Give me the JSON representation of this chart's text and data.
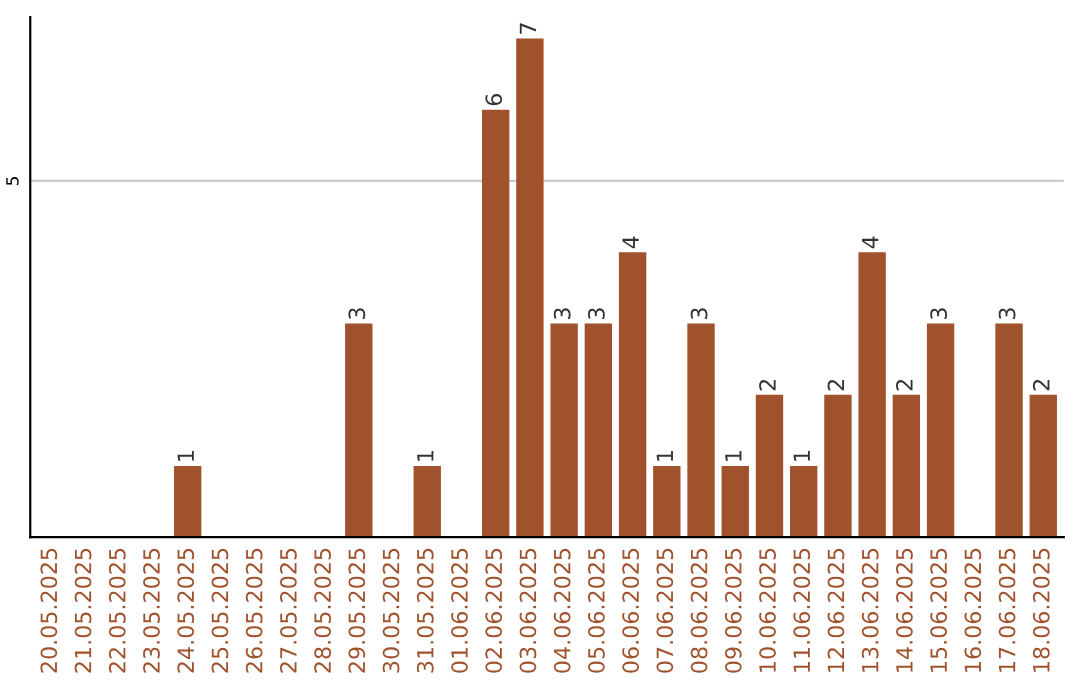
{
  "chart_data": {
    "type": "bar",
    "categories": [
      "20.05.2025",
      "21.05.2025",
      "22.05.2025",
      "23.05.2025",
      "24.05.2025",
      "25.05.2025",
      "26.05.2025",
      "27.05.2025",
      "28.05.2025",
      "29.05.2025",
      "30.05.2025",
      "31.05.2025",
      "01.06.2025",
      "02.06.2025",
      "03.06.2025",
      "04.06.2025",
      "05.06.2025",
      "06.06.2025",
      "07.06.2025",
      "08.06.2025",
      "09.06.2025",
      "10.06.2025",
      "11.06.2025",
      "12.06.2025",
      "13.06.2025",
      "14.06.2025",
      "15.06.2025",
      "16.06.2025",
      "17.06.2025",
      "18.06.2025"
    ],
    "values": [
      0,
      0,
      0,
      0,
      1,
      0,
      0,
      0,
      0,
      3,
      0,
      1,
      0,
      6,
      7,
      3,
      3,
      4,
      1,
      3,
      1,
      2,
      1,
      2,
      4,
      2,
      3,
      0,
      3,
      2
    ],
    "value_labels": [
      null,
      null,
      null,
      null,
      "1",
      null,
      null,
      null,
      null,
      "3",
      null,
      "1",
      null,
      "6",
      "7",
      "3",
      "3",
      "4",
      "1",
      "3",
      "1",
      "2",
      "1",
      "2",
      "4",
      "2",
      "3",
      null,
      "3",
      "2"
    ],
    "color": "#a0522d",
    "ylim": [
      0,
      7.3
    ],
    "yticks": [
      5
    ],
    "grid": "y"
  }
}
